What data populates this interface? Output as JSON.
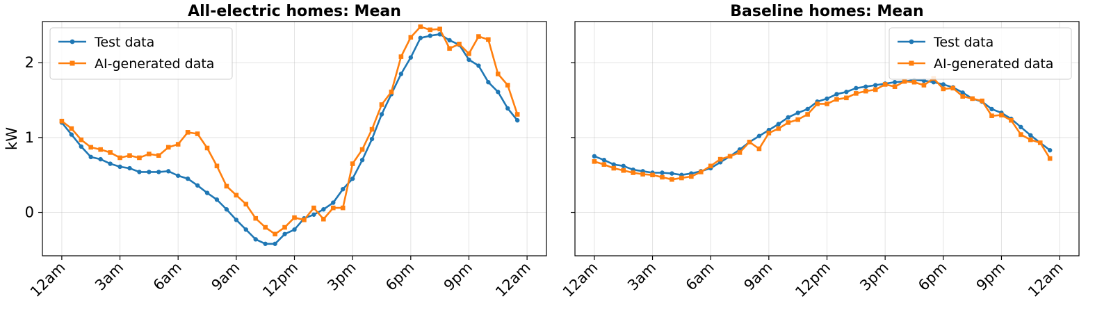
{
  "colors": {
    "test": "#1f77b4",
    "ai": "#ff7f0e"
  },
  "chart_data": [
    {
      "type": "line",
      "title": "All-electric homes: Mean",
      "ylabel": "kW",
      "xlabel": "",
      "ylim": [
        -0.58,
        2.55
      ],
      "xlim": [
        -1.0,
        25.0
      ],
      "yticks": [
        0,
        1,
        2
      ],
      "xtick_positions": [
        0,
        3,
        6,
        9,
        12,
        15,
        18,
        21,
        24
      ],
      "xtick_labels": [
        "12am",
        "3am",
        "6am",
        "9am",
        "12pm",
        "3pm",
        "6pm",
        "9pm",
        "12am"
      ],
      "grid": true,
      "legend": "top-left",
      "x": [
        0,
        0.5,
        1,
        1.5,
        2,
        2.5,
        3,
        3.5,
        4,
        4.5,
        5,
        5.5,
        6,
        6.5,
        7,
        7.5,
        8,
        8.5,
        9,
        9.5,
        10,
        10.5,
        11,
        11.5,
        12,
        12.5,
        13,
        13.5,
        14,
        14.5,
        15,
        15.5,
        16,
        16.5,
        17,
        17.5,
        18,
        18.5,
        19,
        19.5,
        20,
        20.5,
        21,
        21.5,
        22,
        22.5,
        23,
        23.5
      ],
      "series": [
        {
          "name": "Test data",
          "color_key": "test",
          "marker": "circle",
          "values": [
            1.2,
            1.04,
            0.88,
            0.74,
            0.71,
            0.65,
            0.61,
            0.59,
            0.54,
            0.54,
            0.54,
            0.55,
            0.49,
            0.45,
            0.36,
            0.26,
            0.17,
            0.04,
            -0.1,
            -0.23,
            -0.36,
            -0.42,
            -0.42,
            -0.29,
            -0.23,
            -0.08,
            -0.03,
            0.04,
            0.13,
            0.31,
            0.45,
            0.7,
            0.98,
            1.31,
            1.58,
            1.85,
            2.07,
            2.33,
            2.36,
            2.38,
            2.3,
            2.24,
            2.04,
            1.96,
            1.74,
            1.61,
            1.39,
            1.23
          ]
        },
        {
          "name": "AI-generated data",
          "color_key": "ai",
          "marker": "square",
          "values": [
            1.22,
            1.12,
            0.97,
            0.87,
            0.84,
            0.8,
            0.73,
            0.76,
            0.73,
            0.78,
            0.76,
            0.87,
            0.91,
            1.07,
            1.05,
            0.86,
            0.62,
            0.35,
            0.23,
            0.11,
            -0.08,
            -0.2,
            -0.29,
            -0.2,
            -0.07,
            -0.1,
            0.06,
            -0.09,
            0.06,
            0.06,
            0.65,
            0.84,
            1.11,
            1.44,
            1.61,
            2.08,
            2.34,
            2.48,
            2.44,
            2.45,
            2.19,
            2.25,
            2.12,
            2.35,
            2.31,
            1.85,
            1.7,
            1.31
          ]
        }
      ]
    },
    {
      "type": "line",
      "title": "Baseline homes: Mean",
      "ylabel": "",
      "xlabel": "",
      "ylim": [
        -0.58,
        2.55
      ],
      "xlim": [
        -1.0,
        25.0
      ],
      "yticks": [
        0,
        1,
        2
      ],
      "xtick_positions": [
        0,
        3,
        6,
        9,
        12,
        15,
        18,
        21,
        24
      ],
      "xtick_labels": [
        "12am",
        "3am",
        "6am",
        "9am",
        "12pm",
        "3pm",
        "6pm",
        "9pm",
        "12am"
      ],
      "grid": true,
      "legend": "top-right",
      "x": [
        0,
        0.5,
        1,
        1.5,
        2,
        2.5,
        3,
        3.5,
        4,
        4.5,
        5,
        5.5,
        6,
        6.5,
        7,
        7.5,
        8,
        8.5,
        9,
        9.5,
        10,
        10.5,
        11,
        11.5,
        12,
        12.5,
        13,
        13.5,
        14,
        14.5,
        15,
        15.5,
        16,
        16.5,
        17,
        17.5,
        18,
        18.5,
        19,
        19.5,
        20,
        20.5,
        21,
        21.5,
        22,
        22.5,
        23,
        23.5
      ],
      "series": [
        {
          "name": "Test data",
          "color_key": "test",
          "marker": "circle",
          "values": [
            0.75,
            0.7,
            0.64,
            0.62,
            0.57,
            0.55,
            0.53,
            0.53,
            0.52,
            0.5,
            0.52,
            0.55,
            0.59,
            0.67,
            0.75,
            0.84,
            0.94,
            1.02,
            1.1,
            1.18,
            1.27,
            1.33,
            1.38,
            1.48,
            1.52,
            1.58,
            1.61,
            1.66,
            1.68,
            1.7,
            1.72,
            1.74,
            1.75,
            1.77,
            1.76,
            1.74,
            1.71,
            1.67,
            1.6,
            1.52,
            1.48,
            1.38,
            1.33,
            1.25,
            1.14,
            1.03,
            0.93,
            0.83
          ]
        },
        {
          "name": "AI-generated data",
          "color_key": "ai",
          "marker": "square",
          "values": [
            0.68,
            0.64,
            0.59,
            0.56,
            0.53,
            0.51,
            0.5,
            0.47,
            0.44,
            0.46,
            0.48,
            0.54,
            0.62,
            0.71,
            0.75,
            0.8,
            0.94,
            0.85,
            1.06,
            1.12,
            1.2,
            1.24,
            1.31,
            1.45,
            1.45,
            1.51,
            1.53,
            1.59,
            1.62,
            1.64,
            1.71,
            1.68,
            1.75,
            1.74,
            1.7,
            1.79,
            1.65,
            1.66,
            1.55,
            1.52,
            1.49,
            1.29,
            1.3,
            1.23,
            1.04,
            0.97,
            0.93,
            0.72
          ]
        }
      ]
    }
  ]
}
